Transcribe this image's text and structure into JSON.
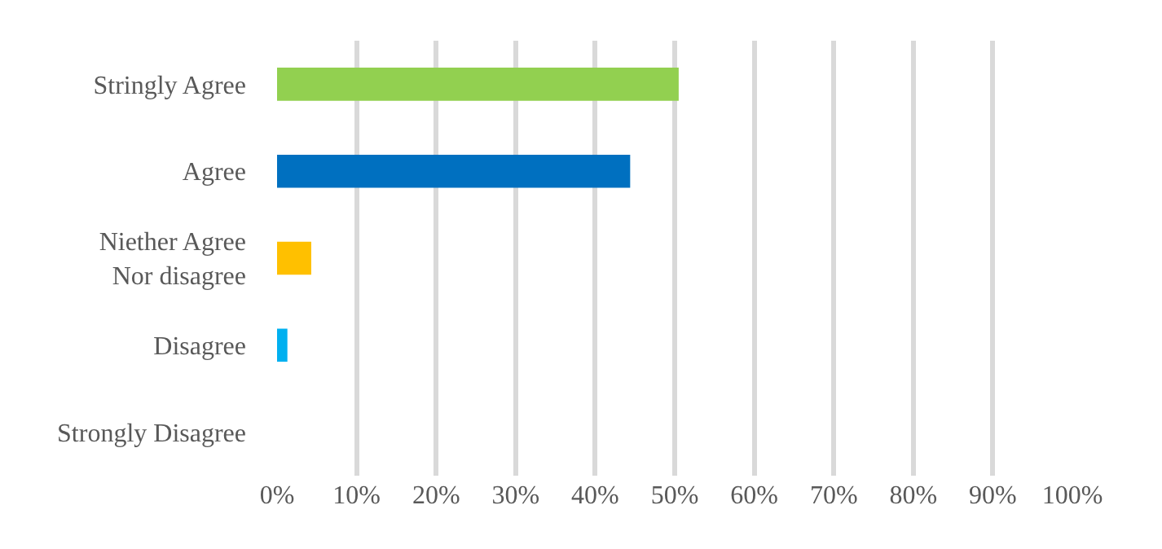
{
  "chart_data": {
    "type": "bar",
    "orientation": "horizontal",
    "categories": [
      "Stringly Agree",
      "Agree",
      "Niether Agree\nNor disagree",
      "Disagree",
      "Strongly Disagree"
    ],
    "values": [
      50.5,
      44.4,
      4.3,
      1.3,
      0
    ],
    "colors": [
      "#92d050",
      "#0070c0",
      "#ffc000",
      "#00b0f0",
      "#7f7f7f"
    ],
    "xlim": [
      0,
      100
    ],
    "xticks": [
      {
        "value": 0,
        "label": "0%"
      },
      {
        "value": 10,
        "label": "10%"
      },
      {
        "value": 20,
        "label": "20%"
      },
      {
        "value": 30,
        "label": "30%"
      },
      {
        "value": 40,
        "label": "40%"
      },
      {
        "value": 50,
        "label": "50%"
      },
      {
        "value": 60,
        "label": "60%"
      },
      {
        "value": 70,
        "label": "70%"
      },
      {
        "value": 80,
        "label": "80%"
      },
      {
        "value": 90,
        "label": "90%"
      },
      {
        "value": 100,
        "label": "100%"
      }
    ],
    "grid": "x"
  }
}
